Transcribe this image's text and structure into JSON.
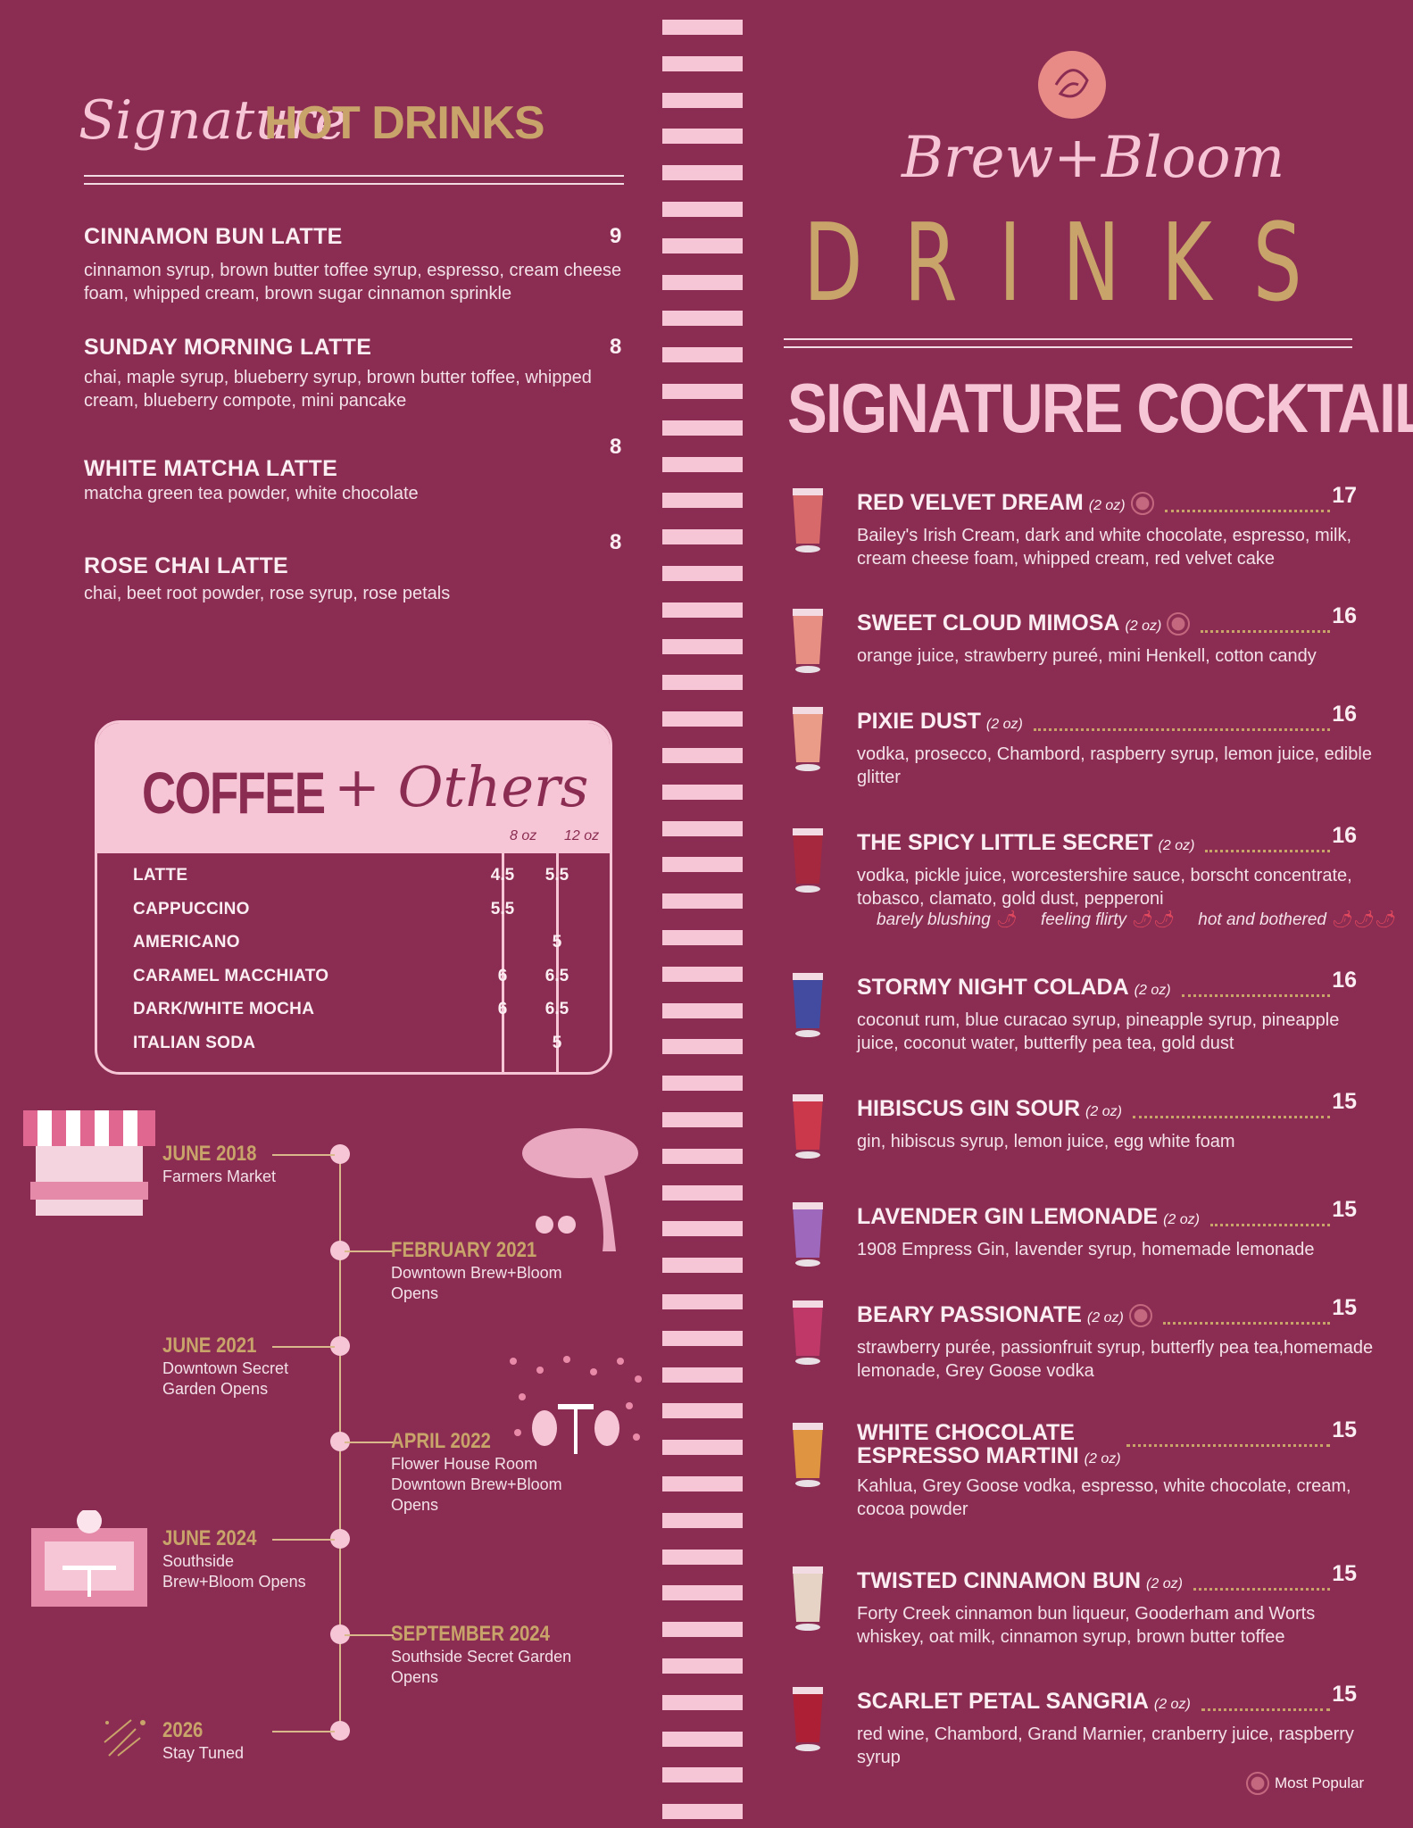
{
  "brand": {
    "name": "Brew+Bloom",
    "title": "DRINKS"
  },
  "hot": {
    "script": "Signature",
    "title": "HOT DRINKS",
    "items": [
      {
        "name": "CINNAMON BUN LATTE",
        "price": "9",
        "desc": "cinnamon syrup, brown butter toffee syrup, espresso, cream cheese foam, whipped cream, brown sugar cinnamon sprinkle"
      },
      {
        "name": "SUNDAY MORNING LATTE",
        "price": "8",
        "desc": "chai, maple syrup, blueberry syrup, brown butter toffee, whipped cream, blueberry compote, mini pancake"
      },
      {
        "name": "WHITE MATCHA LATTE",
        "price": "8",
        "desc": "matcha green tea powder, white chocolate"
      },
      {
        "name": "ROSE CHAI LATTE",
        "price": "8",
        "desc": "chai, beet root powder, rose syrup, rose petals"
      }
    ]
  },
  "coffee": {
    "title": "COFFEE",
    "script": "+ Others",
    "sizes": [
      "8 oz",
      "12 oz"
    ],
    "rows": [
      {
        "name": "LATTE",
        "s8": "4.5",
        "s12": "5.5"
      },
      {
        "name": "CAPPUCCINO",
        "s8": "5.5",
        "s12": ""
      },
      {
        "name": "AMERICANO",
        "s8": "",
        "s12": "5"
      },
      {
        "name": "CARAMEL MACCHIATO",
        "s8": "6",
        "s12": "6.5"
      },
      {
        "name": "DARK/WHITE MOCHA",
        "s8": "6",
        "s12": "6.5"
      },
      {
        "name": "ITALIAN SODA",
        "s8": "",
        "s12": "5"
      }
    ]
  },
  "timeline": [
    {
      "date": "JUNE 2018",
      "text": "Farmers Market",
      "side": "right"
    },
    {
      "date": "FEBRUARY 2021",
      "text": "Downtown Brew+Bloom Opens",
      "side": "left"
    },
    {
      "date": "JUNE 2021",
      "text": "Downtown Secret Garden Opens",
      "side": "right"
    },
    {
      "date": "APRIL 2022",
      "text": "Flower House Room Downtown Brew+Bloom Opens",
      "side": "left"
    },
    {
      "date": "JUNE 2024",
      "text": "Southside Brew+Bloom Opens",
      "side": "right"
    },
    {
      "date": "SEPTEMBER 2024",
      "text": "Southside Secret Garden Opens",
      "side": "left"
    },
    {
      "date": "2026",
      "text": "Stay Tuned",
      "side": "right"
    }
  ],
  "cocktails": {
    "title": "SIGNATURE COCKTAILS",
    "legend": "Most Popular",
    "items": [
      {
        "name": "RED VELVET DREAM",
        "oz": "(2 oz)",
        "popular": true,
        "price": "17",
        "desc": "Bailey's Irish Cream, dark and white chocolate, espresso, milk, cream cheese foam, whipped cream, red velvet cake",
        "color": "#e0706e"
      },
      {
        "name": "SWEET CLOUD MIMOSA",
        "oz": "(2 oz)",
        "popular": true,
        "price": "16",
        "desc": "orange juice, strawberry pureé, mini Henkell,  cotton candy",
        "color": "#f29a8a"
      },
      {
        "name": "PIXIE DUST",
        "oz": "(2 oz)",
        "popular": false,
        "price": "16",
        "desc": "vodka, prosecco, Chambord, raspberry syrup, lemon juice, edible glitter",
        "color": "#f5a88f"
      },
      {
        "name": "THE SPICY LITTLE SECRET",
        "oz": "(2 oz)",
        "popular": false,
        "price": "16",
        "desc": "vodka, pickle juice, worcestershire sauce, borscht concentrate, tobasco, clamato, gold dust, pepperoni",
        "color": "#a8283c",
        "heat": [
          "barely blushing",
          "feeling flirty",
          "hot and bothered"
        ]
      },
      {
        "name": "STORMY NIGHT COLADA",
        "oz": "(2 oz)",
        "popular": false,
        "price": "16",
        "desc": "coconut rum, blue curacao syrup, pineapple syrup, pineapple juice, coconut water, butterfly pea tea, gold dust",
        "color": "#3a4fa8"
      },
      {
        "name": "HIBISCUS GIN SOUR",
        "oz": "(2 oz)",
        "popular": false,
        "price": "15",
        "desc": "gin, hibiscus syrup, lemon juice, egg white foam",
        "color": "#d23a4a"
      },
      {
        "name": "LAVENDER GIN LEMONADE",
        "oz": "(2 oz)",
        "popular": false,
        "price": "15",
        "desc": "1908 Empress Gin, lavender syrup, homemade lemonade",
        "color": "#a070c8"
      },
      {
        "name": "BEARY PASSIONATE",
        "oz": "(2 oz)",
        "popular": true,
        "price": "15",
        "desc": "strawberry purée, passionfruit syrup, butterfly pea tea,homemade lemonade, Grey Goose vodka",
        "color": "#c43a6a"
      },
      {
        "name": "WHITE CHOCOLATE ESPRESSO MARTINI",
        "oz": "(2 oz)",
        "popular": false,
        "price": "15",
        "desc": "Kahlua, Grey Goose vodka, espresso, white chocolate, cream, cocoa powder",
        "color": "#e8a040"
      },
      {
        "name": "TWISTED CINNAMON BUN",
        "oz": "(2 oz)",
        "popular": false,
        "price": "15",
        "desc": "Forty Creek cinnamon bun liqueur, Gooderham and Worts whiskey, oat milk, cinnamon syrup, brown butter toffee",
        "color": "#f1e6d2"
      },
      {
        "name": "SCARLET PETAL SANGRIA",
        "oz": "(2 oz)",
        "popular": false,
        "price": "15",
        "desc": "red wine, Chambord, Grand Marnier, cranberry juice, raspberry syrup",
        "color": "#b01e32"
      }
    ]
  },
  "colors": {
    "background": "#8b2d52",
    "pink": "#f7c6d6",
    "gold": "#c9a46a"
  }
}
